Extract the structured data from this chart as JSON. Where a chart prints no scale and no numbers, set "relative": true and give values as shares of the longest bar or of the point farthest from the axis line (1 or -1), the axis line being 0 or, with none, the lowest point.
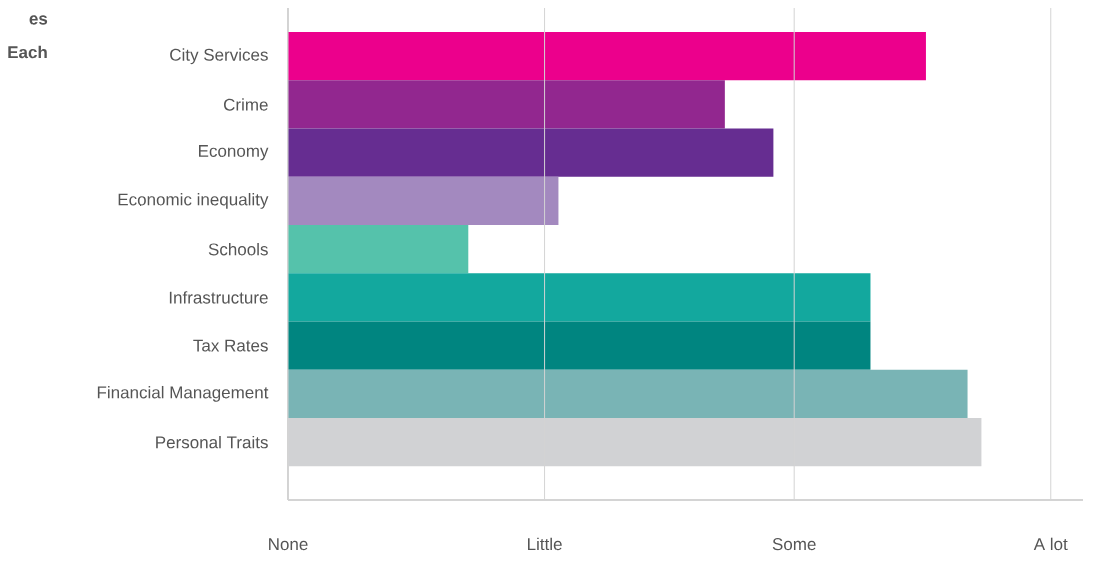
{
  "chart_data": {
    "type": "bar",
    "orientation": "horizontal",
    "relative": true,
    "categories": [
      "City Services",
      "Crime",
      "Economy",
      "Economic inequality",
      "Schools",
      "Infrastructure",
      "Tax Rates",
      "Financial Management",
      "Personal Traits"
    ],
    "values": [
      0.92,
      0.63,
      0.7,
      0.39,
      0.26,
      0.84,
      0.84,
      0.98,
      1
    ],
    "colors": [
      "#ec008c",
      "#92278f",
      "#662d91",
      "#a389bf",
      "#55c2ab",
      "#13a89e",
      "#008580",
      "#79b4b5",
      "#d1d2d4"
    ],
    "ref_lines": [
      {
        "axis": "x",
        "value": 0,
        "label": "None",
        "color": "#d4d4d4"
      },
      {
        "axis": "x",
        "value": 0.37,
        "label": "Little",
        "color": "#d4d4d4"
      },
      {
        "axis": "x",
        "value": 0.73,
        "label": "Some",
        "color": "#d4d4d4"
      },
      {
        "axis": "x",
        "value": 1.1,
        "label": "A lot",
        "color": "#d4d4d4"
      }
    ],
    "annotations": [
      "es",
      "Each"
    ]
  }
}
